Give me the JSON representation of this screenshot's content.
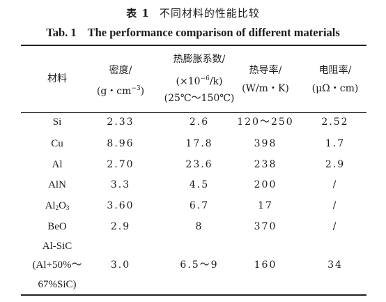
{
  "caption": {
    "cn_label": "表 1",
    "cn_title": "不同材料的性能比较",
    "en_label": "Tab. 1",
    "en_title": "The performance comparison of different materials"
  },
  "table": {
    "headers": [
      {
        "lines": [
          "材料"
        ]
      },
      {
        "lines": [
          "密度/",
          "(g・cm⁻³)"
        ]
      },
      {
        "lines": [
          "热膨胀系数/",
          "(×10⁻⁶/k)",
          "(25℃～150℃)"
        ]
      },
      {
        "lines": [
          "热导率/",
          "(W/m・K)"
        ]
      },
      {
        "lines": [
          "电阻率/",
          "(μΩ・cm)"
        ]
      }
    ],
    "rows": [
      {
        "material": [
          "Si"
        ],
        "density": "2.33",
        "cte": "2.6",
        "conductivity": "120～250",
        "resistivity": "2.52"
      },
      {
        "material": [
          "Cu"
        ],
        "density": "8.96",
        "cte": "17.8",
        "conductivity": "398",
        "resistivity": "1.7"
      },
      {
        "material": [
          "Al"
        ],
        "density": "2.70",
        "cte": "23.6",
        "conductivity": "238",
        "resistivity": "2.9"
      },
      {
        "material": [
          "AlN"
        ],
        "density": "3.3",
        "cte": "4.5",
        "conductivity": "200",
        "resistivity": "/"
      },
      {
        "material": [
          "Al₂O₃"
        ],
        "density": "3.60",
        "cte": "6.7",
        "conductivity": "17",
        "resistivity": "/"
      },
      {
        "material": [
          "BeO"
        ],
        "density": "2.9",
        "cte": "8",
        "conductivity": "370",
        "resistivity": "/"
      },
      {
        "material": [
          "Al-SiC",
          "(Al+50%～",
          "67%SiC)"
        ],
        "density": "3.0",
        "cte": "6.5～9",
        "conductivity": "160",
        "resistivity": "34"
      }
    ]
  }
}
